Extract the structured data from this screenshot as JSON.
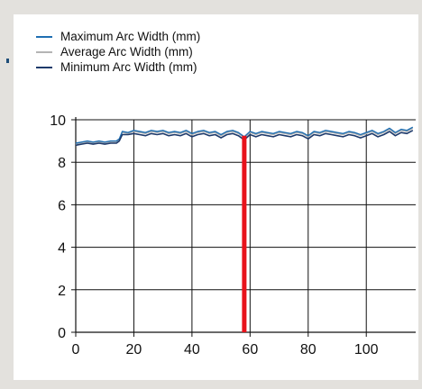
{
  "colors": {
    "background": "#e3e1dd",
    "plot_background": "#ffffff",
    "axis": "#111111",
    "marker": "#e8121b"
  },
  "chart_data": {
    "type": "line",
    "title": "",
    "xlabel": "",
    "ylabel": "",
    "xlim": [
      0,
      117
    ],
    "ylim": [
      0,
      10
    ],
    "xticks": [
      0,
      20,
      40,
      60,
      80,
      100
    ],
    "yticks": [
      0,
      2,
      4,
      6,
      8,
      10
    ],
    "grid": true,
    "legend_position": "top-left",
    "vertical_marker_x": 58,
    "series": [
      {
        "name": "Maximum Arc Width (mm)",
        "color": "#1f6fb2",
        "x": [
          0,
          2,
          4,
          6,
          8,
          10,
          12,
          14,
          15,
          16,
          18,
          20,
          22,
          24,
          26,
          28,
          30,
          32,
          34,
          36,
          38,
          40,
          42,
          44,
          46,
          48,
          50,
          52,
          54,
          56,
          58,
          60,
          62,
          64,
          66,
          68,
          70,
          72,
          74,
          76,
          78,
          80,
          82,
          84,
          86,
          88,
          90,
          92,
          94,
          96,
          98,
          100,
          102,
          104,
          106,
          108,
          110,
          112,
          114,
          116
        ],
        "values": [
          8.9,
          8.95,
          9.0,
          8.95,
          9.0,
          8.95,
          9.0,
          9.0,
          9.1,
          9.45,
          9.4,
          9.5,
          9.45,
          9.4,
          9.5,
          9.45,
          9.5,
          9.4,
          9.45,
          9.4,
          9.5,
          9.35,
          9.45,
          9.5,
          9.4,
          9.45,
          9.3,
          9.45,
          9.5,
          9.4,
          9.2,
          9.45,
          9.35,
          9.45,
          9.4,
          9.35,
          9.45,
          9.4,
          9.35,
          9.45,
          9.4,
          9.25,
          9.45,
          9.4,
          9.5,
          9.45,
          9.4,
          9.35,
          9.45,
          9.4,
          9.3,
          9.4,
          9.5,
          9.35,
          9.45,
          9.6,
          9.4,
          9.55,
          9.5,
          9.65
        ]
      },
      {
        "name": "Average Arc Width (mm)",
        "color": "#b4b4b4",
        "x": [
          0,
          2,
          4,
          6,
          8,
          10,
          12,
          14,
          15,
          16,
          18,
          20,
          22,
          24,
          26,
          28,
          30,
          32,
          34,
          36,
          38,
          40,
          42,
          44,
          46,
          48,
          50,
          52,
          54,
          56,
          58,
          60,
          62,
          64,
          66,
          68,
          70,
          72,
          74,
          76,
          78,
          80,
          82,
          84,
          86,
          88,
          90,
          92,
          94,
          96,
          98,
          100,
          102,
          104,
          106,
          108,
          110,
          112,
          114,
          116
        ],
        "values": [
          8.85,
          8.9,
          8.95,
          8.9,
          8.95,
          8.9,
          8.95,
          8.95,
          9.05,
          9.4,
          9.35,
          9.45,
          9.4,
          9.35,
          9.45,
          9.4,
          9.45,
          9.35,
          9.4,
          9.35,
          9.45,
          9.3,
          9.4,
          9.45,
          9.35,
          9.4,
          9.25,
          9.4,
          9.45,
          9.35,
          9.15,
          9.4,
          9.3,
          9.4,
          9.35,
          9.3,
          9.4,
          9.35,
          9.3,
          9.4,
          9.35,
          9.2,
          9.4,
          9.35,
          9.45,
          9.4,
          9.35,
          9.3,
          9.4,
          9.35,
          9.25,
          9.35,
          9.45,
          9.3,
          9.4,
          9.55,
          9.35,
          9.5,
          9.45,
          9.6
        ]
      },
      {
        "name": "Minimum Arc Width (mm)",
        "color": "#1e3a6b",
        "x": [
          0,
          2,
          4,
          6,
          8,
          10,
          12,
          14,
          15,
          16,
          18,
          20,
          22,
          24,
          26,
          28,
          30,
          32,
          34,
          36,
          38,
          40,
          42,
          44,
          46,
          48,
          50,
          52,
          54,
          56,
          58,
          60,
          62,
          64,
          66,
          68,
          70,
          72,
          74,
          76,
          78,
          80,
          82,
          84,
          86,
          88,
          90,
          92,
          94,
          96,
          98,
          100,
          102,
          104,
          106,
          108,
          110,
          112,
          114,
          116
        ],
        "values": [
          8.8,
          8.85,
          8.9,
          8.85,
          8.9,
          8.85,
          8.9,
          8.9,
          9.0,
          9.3,
          9.3,
          9.35,
          9.3,
          9.25,
          9.35,
          9.3,
          9.35,
          9.25,
          9.3,
          9.25,
          9.35,
          9.2,
          9.3,
          9.35,
          9.25,
          9.3,
          9.15,
          9.3,
          9.35,
          9.25,
          9.05,
          9.3,
          9.2,
          9.3,
          9.25,
          9.2,
          9.3,
          9.25,
          9.2,
          9.3,
          9.25,
          9.1,
          9.3,
          9.25,
          9.35,
          9.3,
          9.25,
          9.2,
          9.3,
          9.25,
          9.15,
          9.25,
          9.35,
          9.2,
          9.3,
          9.45,
          9.25,
          9.4,
          9.35,
          9.5
        ]
      }
    ]
  }
}
